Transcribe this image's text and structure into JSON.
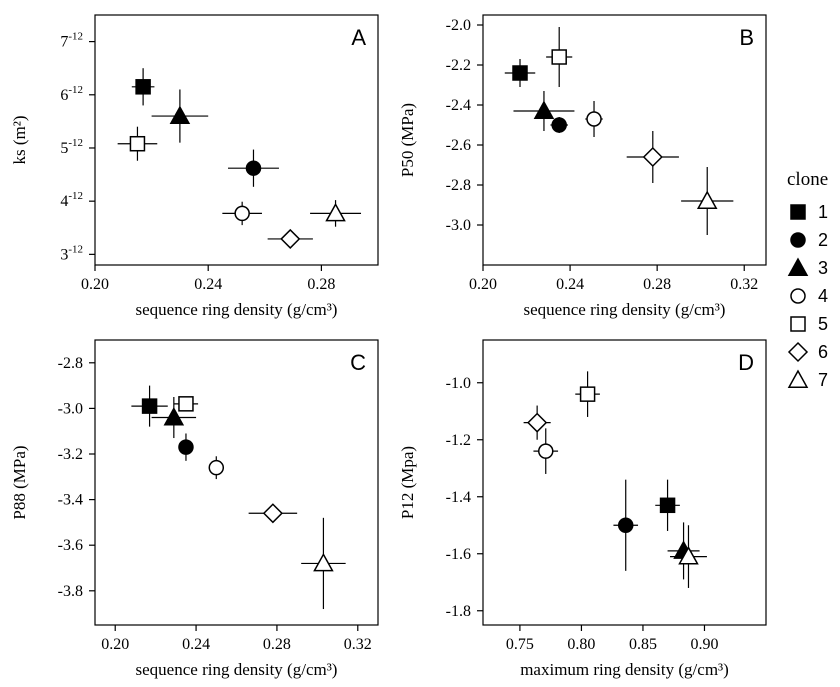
{
  "figure": {
    "legend": {
      "title": "clone",
      "entries": [
        {
          "label": "1",
          "marker": "square",
          "fill": "#000000"
        },
        {
          "label": "2",
          "marker": "circle",
          "fill": "#000000"
        },
        {
          "label": "3",
          "marker": "triangle",
          "fill": "#000000"
        },
        {
          "label": "4",
          "marker": "circle",
          "fill": "#ffffff"
        },
        {
          "label": "5",
          "marker": "square",
          "fill": "#ffffff"
        },
        {
          "label": "6",
          "marker": "diamond",
          "fill": "#ffffff"
        },
        {
          "label": "7",
          "marker": "triangle",
          "fill": "#ffffff"
        }
      ]
    }
  },
  "chart_data": [
    {
      "type": "scatter",
      "panel_label": "A",
      "xlabel": "sequence ring density (g/cm³)",
      "ylabel": "ks (m²)",
      "xlim": [
        0.2,
        0.3
      ],
      "ylim": [
        2.8,
        7.5
      ],
      "xticks": [
        0.2,
        0.24,
        0.28
      ],
      "xtick_labels": [
        "0.20",
        "0.24",
        "0.28"
      ],
      "yticks": [
        3,
        4,
        5,
        6,
        7
      ],
      "ytick_labels": [
        "3-12",
        "4-12",
        "5-12",
        "6-12",
        "7-12"
      ],
      "ytick_base": [
        "3",
        "4",
        "5",
        "6",
        "7"
      ],
      "ytick_exp": "-12",
      "points": [
        {
          "clone": "1",
          "x": 0.217,
          "y": 6.15,
          "xerr": 0.004,
          "yerr": 0.35
        },
        {
          "clone": "2",
          "x": 0.256,
          "y": 4.62,
          "xerr": 0.009,
          "yerr": 0.35
        },
        {
          "clone": "3",
          "x": 0.23,
          "y": 5.6,
          "xerr": 0.01,
          "yerr": 0.5
        },
        {
          "clone": "4",
          "x": 0.252,
          "y": 3.77,
          "xerr": 0.007,
          "yerr": 0.22
        },
        {
          "clone": "5",
          "x": 0.215,
          "y": 5.08,
          "xerr": 0.007,
          "yerr": 0.32
        },
        {
          "clone": "6",
          "x": 0.269,
          "y": 3.29,
          "xerr": 0.008,
          "yerr": 0.05
        },
        {
          "clone": "7",
          "x": 0.285,
          "y": 3.77,
          "xerr": 0.009,
          "yerr": 0.25
        }
      ]
    },
    {
      "type": "scatter",
      "panel_label": "B",
      "xlabel": "sequence ring density (g/cm³)",
      "ylabel": "P50 (MPa)",
      "xlim": [
        0.2,
        0.33
      ],
      "ylim": [
        -3.2,
        -1.95
      ],
      "xticks": [
        0.2,
        0.24,
        0.28,
        0.32
      ],
      "xtick_labels": [
        "0.20",
        "0.24",
        "0.28",
        "0.32"
      ],
      "yticks": [
        -3.0,
        -2.8,
        -2.6,
        -2.4,
        -2.2,
        -2.0
      ],
      "ytick_labels": [
        "-3.0",
        "-2.8",
        "-2.6",
        "-2.4",
        "-2.2",
        "-2.0"
      ],
      "points": [
        {
          "clone": "1",
          "x": 0.217,
          "y": -2.24,
          "xerr": 0.007,
          "yerr": 0.07
        },
        {
          "clone": "2",
          "x": 0.235,
          "y": -2.5,
          "xerr": 0.004,
          "yerr": 0.04
        },
        {
          "clone": "3",
          "x": 0.228,
          "y": -2.43,
          "xerr": 0.014,
          "yerr": 0.1
        },
        {
          "clone": "4",
          "x": 0.251,
          "y": -2.47,
          "xerr": 0.004,
          "yerr": 0.09
        },
        {
          "clone": "5",
          "x": 0.235,
          "y": -2.16,
          "xerr": 0.006,
          "yerr": 0.15
        },
        {
          "clone": "6",
          "x": 0.278,
          "y": -2.66,
          "xerr": 0.012,
          "yerr": 0.13
        },
        {
          "clone": "7",
          "x": 0.303,
          "y": -2.88,
          "xerr": 0.012,
          "yerr": 0.17
        }
      ]
    },
    {
      "type": "scatter",
      "panel_label": "C",
      "xlabel": "sequence ring density (g/cm³)",
      "ylabel": "P88 (MPa)",
      "xlim": [
        0.19,
        0.33
      ],
      "ylim": [
        -3.95,
        -2.7
      ],
      "xticks": [
        0.2,
        0.24,
        0.28,
        0.32
      ],
      "xtick_labels": [
        "0.20",
        "0.24",
        "0.28",
        "0.32"
      ],
      "yticks": [
        -3.8,
        -3.6,
        -3.4,
        -3.2,
        -3.0,
        -2.8
      ],
      "ytick_labels": [
        "-3.8",
        "-3.6",
        "-3.4",
        "-3.2",
        "-3.0",
        "-2.8"
      ],
      "points": [
        {
          "clone": "1",
          "x": 0.217,
          "y": -2.99,
          "xerr": 0.009,
          "yerr": 0.09
        },
        {
          "clone": "2",
          "x": 0.235,
          "y": -3.17,
          "xerr": 0.003,
          "yerr": 0.06
        },
        {
          "clone": "3",
          "x": 0.229,
          "y": -3.04,
          "xerr": 0.011,
          "yerr": 0.09
        },
        {
          "clone": "4",
          "x": 0.25,
          "y": -3.26,
          "xerr": 0.003,
          "yerr": 0.05
        },
        {
          "clone": "5",
          "x": 0.235,
          "y": -2.98,
          "xerr": 0.006,
          "yerr": 0.03
        },
        {
          "clone": "6",
          "x": 0.278,
          "y": -3.46,
          "xerr": 0.012,
          "yerr": 0.03
        },
        {
          "clone": "7",
          "x": 0.303,
          "y": -3.68,
          "xerr": 0.011,
          "yerr": 0.2
        }
      ]
    },
    {
      "type": "scatter",
      "panel_label": "D",
      "xlabel": "maximum ring density (g/cm³)",
      "ylabel": "P12 (Mpa)",
      "xlim": [
        0.72,
        0.95
      ],
      "ylim": [
        -1.85,
        -0.85
      ],
      "xticks": [
        0.75,
        0.8,
        0.85,
        0.9
      ],
      "xtick_labels": [
        "0.75",
        "0.80",
        "0.85",
        "0.90"
      ],
      "yticks": [
        -1.8,
        -1.6,
        -1.4,
        -1.2,
        -1.0
      ],
      "ytick_labels": [
        "-1.8",
        "-1.6",
        "-1.4",
        "-1.2",
        "-1.0"
      ],
      "points": [
        {
          "clone": "1",
          "x": 0.87,
          "y": -1.43,
          "xerr": 0.01,
          "yerr": 0.09
        },
        {
          "clone": "2",
          "x": 0.836,
          "y": -1.5,
          "xerr": 0.01,
          "yerr": 0.16
        },
        {
          "clone": "3",
          "x": 0.883,
          "y": -1.59,
          "xerr": 0.013,
          "yerr": 0.1
        },
        {
          "clone": "4",
          "x": 0.771,
          "y": -1.24,
          "xerr": 0.01,
          "yerr": 0.08
        },
        {
          "clone": "5",
          "x": 0.805,
          "y": -1.04,
          "xerr": 0.01,
          "yerr": 0.08
        },
        {
          "clone": "6",
          "x": 0.764,
          "y": -1.14,
          "xerr": 0.011,
          "yerr": 0.06
        },
        {
          "clone": "7",
          "x": 0.887,
          "y": -1.61,
          "xerr": 0.015,
          "yerr": 0.11
        }
      ]
    }
  ]
}
